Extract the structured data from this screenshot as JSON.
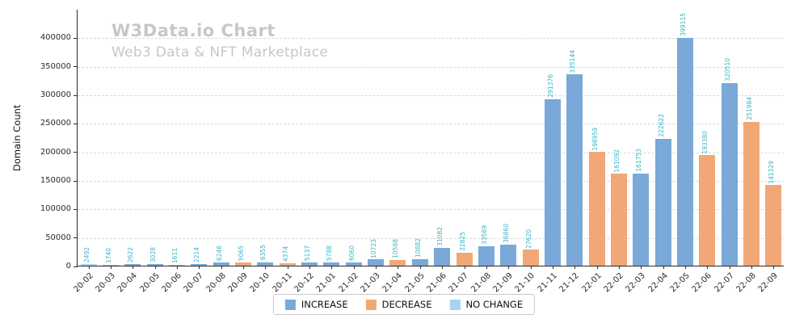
{
  "chart_data": {
    "type": "bar",
    "title": "W3Data.io Chart",
    "subtitle": "Web3 Data & NFT Marketplace",
    "ylabel": "Domain Count",
    "xlabel": "",
    "ylim": [
      0,
      450000
    ],
    "yticks": [
      0,
      50000,
      100000,
      150000,
      200000,
      250000,
      300000,
      350000,
      400000
    ],
    "grid": "horizontal dashed",
    "legend_position": "bottom center",
    "categories": [
      "20-02",
      "20-03",
      "20-04",
      "20-05",
      "20-06",
      "20-07",
      "20-08",
      "20-09",
      "20-10",
      "20-11",
      "20-12",
      "21-01",
      "21-02",
      "21-03",
      "21-04",
      "21-05",
      "21-06",
      "21-07",
      "21-08",
      "21-09",
      "21-10",
      "21-11",
      "21-12",
      "22-01",
      "22-02",
      "22-03",
      "22-04",
      "22-05",
      "22-06",
      "22-07",
      "22-08",
      "22-09"
    ],
    "values": [
      2492,
      1740,
      2622,
      3028,
      1611,
      2214,
      6246,
      5065,
      6355,
      4374,
      5137,
      5788,
      6060,
      10723,
      10588,
      10882,
      31082,
      22825,
      33569,
      36860,
      27620,
      291376,
      335144,
      198959,
      161092,
      161753,
      222622,
      399115,
      193380,
      320510,
      251984,
      141329
    ],
    "bar_types": [
      "no_change",
      "decrease",
      "increase",
      "increase",
      "decrease",
      "increase",
      "increase",
      "decrease",
      "increase",
      "decrease",
      "increase",
      "increase",
      "increase",
      "increase",
      "decrease",
      "increase",
      "increase",
      "decrease",
      "increase",
      "increase",
      "decrease",
      "increase",
      "increase",
      "decrease",
      "decrease",
      "increase",
      "increase",
      "increase",
      "decrease",
      "increase",
      "decrease",
      "decrease"
    ],
    "value_label_color": "#3bb3c6",
    "legend": {
      "items": [
        {
          "label": "INCREASE",
          "type": "increase"
        },
        {
          "label": "DECREASE",
          "type": "decrease"
        },
        {
          "label": "NO CHANGE",
          "type": "no_change"
        }
      ]
    }
  },
  "colors": {
    "increase": "#7aa8d8",
    "decrease": "#f2a876",
    "no_change": "#a6d4f5",
    "grid": "#d9d9d9",
    "axis": "#2b2b2b",
    "title": "#c7c7c7",
    "value_label": "#3bb3c6"
  }
}
